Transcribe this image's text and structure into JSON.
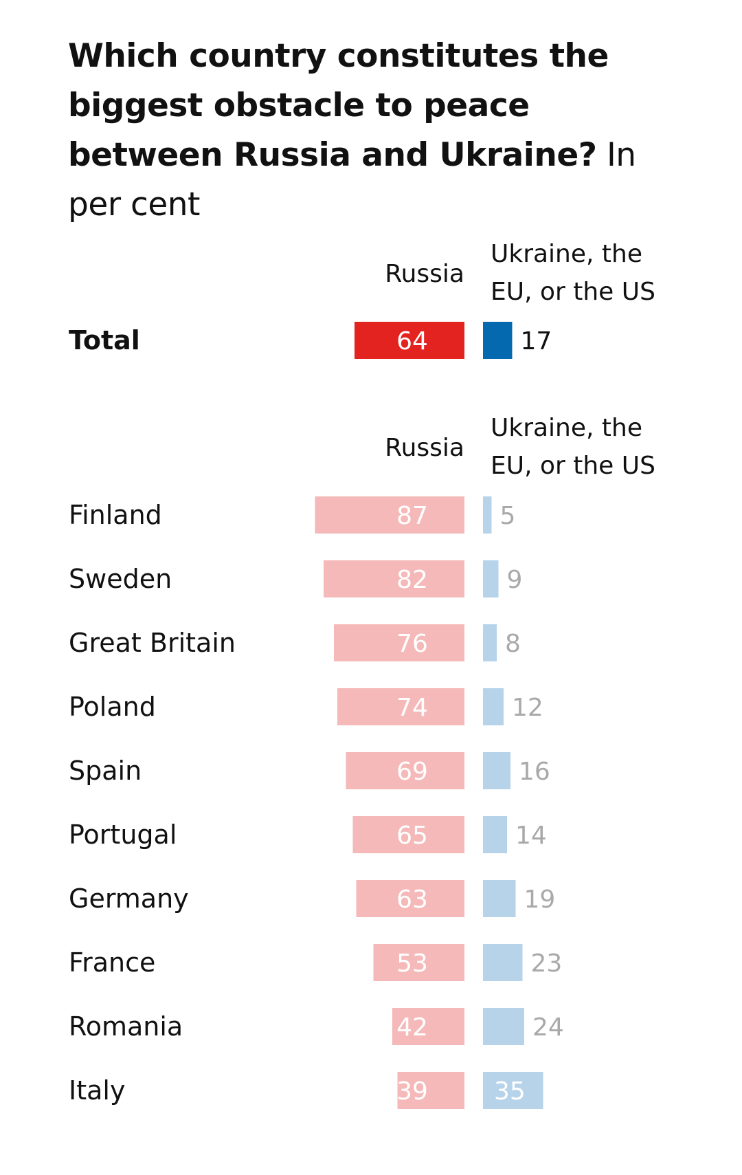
{
  "title": "Which country constitutes the biggest obstacle to peace between Russia and Ukraine?",
  "unit": "In per cent",
  "chart_data": {
    "type": "bar",
    "title": "Which country constitutes the biggest obstacle to peace between Russia and Ukraine?",
    "subtitle": "In per cent",
    "series": [
      {
        "name": "Russia",
        "color": "#e3231f",
        "faded_color": "#f5b9b9"
      },
      {
        "name": "Ukraine, the EU, or the US",
        "color": "#0569b0",
        "faded_color": "#b6d3ea"
      }
    ],
    "total": {
      "label": "Total",
      "russia": 64,
      "ukraine_eu_us": 17
    },
    "categories": [
      "Finland",
      "Sweden",
      "Great Britain",
      "Poland",
      "Spain",
      "Portugal",
      "Germany",
      "France",
      "Romania",
      "Italy"
    ],
    "russia": [
      87,
      82,
      76,
      74,
      69,
      65,
      63,
      53,
      42,
      39
    ],
    "ukraine_eu_us": [
      5,
      9,
      8,
      12,
      16,
      14,
      19,
      23,
      24,
      35
    ],
    "header_russia": "Russia",
    "header_other_line1": "Ukraine, the",
    "header_other_line2": "EU, or the US"
  }
}
